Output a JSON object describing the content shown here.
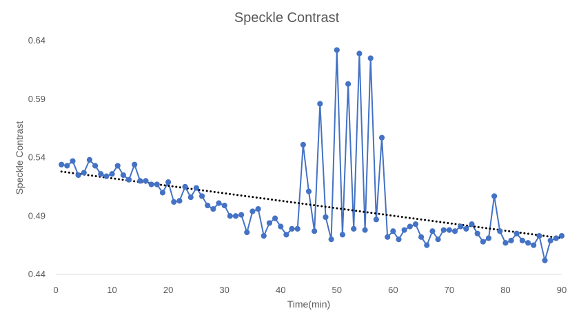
{
  "chart_data": {
    "type": "line",
    "title": "Speckle Contrast",
    "xlabel": "Time(min)",
    "ylabel": "Speckle Contrast",
    "xlim": [
      0,
      90
    ],
    "ylim": [
      0.44,
      0.64
    ],
    "xticks": [
      0,
      10,
      20,
      30,
      40,
      50,
      60,
      70,
      80,
      90
    ],
    "yticks": [
      0.44,
      0.49,
      0.54,
      0.59,
      0.64
    ],
    "xtick_labels": [
      "0",
      "10",
      "20",
      "30",
      "40",
      "50",
      "60",
      "70",
      "80",
      "90"
    ],
    "ytick_labels": [
      "0.44",
      "0.49",
      "0.54",
      "0.59",
      "0.64"
    ],
    "grid": false,
    "legend": "none",
    "colors": {
      "series": "#4472C4",
      "trendline": "#000000",
      "text": "#595959"
    },
    "series": [
      {
        "x": [
          1,
          2,
          3,
          4,
          5,
          6,
          7,
          8,
          9,
          10,
          11,
          12,
          13,
          14,
          15,
          16,
          17,
          18,
          19,
          20,
          21,
          22,
          23,
          24,
          25,
          26,
          27,
          28,
          29,
          30,
          31,
          32,
          33,
          34,
          35,
          36,
          37,
          38,
          39,
          40,
          41,
          42,
          43,
          44,
          45,
          46,
          47,
          48,
          49,
          50,
          51,
          52,
          53,
          54,
          55,
          56,
          57,
          58,
          59,
          60,
          61,
          62,
          63,
          64,
          65,
          66,
          67,
          68,
          69,
          70,
          71,
          72,
          73,
          74,
          75,
          76,
          77,
          78,
          79,
          80,
          81,
          82,
          83,
          84,
          85,
          86,
          87,
          88,
          89,
          90
        ],
        "values": [
          0.534,
          0.533,
          0.537,
          0.525,
          0.527,
          0.538,
          0.533,
          0.526,
          0.524,
          0.526,
          0.533,
          0.525,
          0.521,
          0.534,
          0.52,
          0.52,
          0.517,
          0.517,
          0.51,
          0.519,
          0.502,
          0.503,
          0.515,
          0.506,
          0.514,
          0.507,
          0.499,
          0.496,
          0.501,
          0.499,
          0.49,
          0.49,
          0.491,
          0.476,
          0.494,
          0.496,
          0.473,
          0.484,
          0.488,
          0.481,
          0.474,
          0.479,
          0.479,
          0.551,
          0.511,
          0.477,
          0.586,
          0.489,
          0.47,
          0.632,
          0.474,
          0.603,
          0.479,
          0.629,
          0.478,
          0.625,
          0.487,
          0.557,
          0.472,
          0.477,
          0.47,
          0.478,
          0.481,
          0.483,
          0.472,
          0.465,
          0.477,
          0.47,
          0.478,
          0.478,
          0.477,
          0.481,
          0.479,
          0.483,
          0.475,
          0.468,
          0.471,
          0.507,
          0.477,
          0.467,
          0.469,
          0.475,
          0.469,
          0.467,
          0.465,
          0.473,
          0.452,
          0.469,
          0.471,
          0.473
        ]
      }
    ],
    "trendline": {
      "type": "linear",
      "style": "dotted",
      "start": [
        1,
        0.528
      ],
      "end": [
        90,
        0.471
      ]
    }
  }
}
